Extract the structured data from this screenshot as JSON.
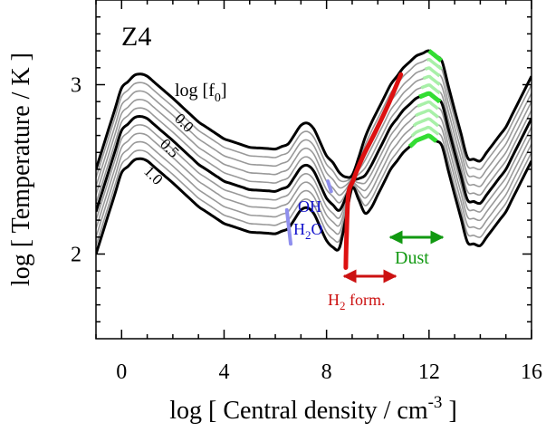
{
  "chart_data": {
    "type": "line",
    "panel_label": "Z4",
    "xlabel_text": "log [ Central density / cm",
    "xlabel_sup": "-3",
    "xlabel_end": " ]",
    "ylabel": "log [ Temperature / K ]",
    "xlim": [
      -1,
      16
    ],
    "ylim": [
      1.5,
      3.5
    ],
    "xticks": [
      0,
      4,
      8,
      12,
      16
    ],
    "yticks": [
      2,
      3
    ],
    "grid": false,
    "legend": "none",
    "param_label": {
      "text": "log [f",
      "sub": "0",
      "end": "]"
    },
    "curve_labels": [
      "0.0",
      "0.5",
      "1.0"
    ],
    "annotations": {
      "oh": "OH",
      "h2o_main": "H",
      "h2o_sub": "2",
      "h2o_end": "O",
      "dust": "Dust",
      "h2_main": "H",
      "h2_sub": "2",
      "h2_end": " form."
    },
    "base_curve": {
      "x": [
        -1.0,
        0.0,
        0.6,
        1.0,
        2.0,
        3.0,
        4.0,
        5.0,
        6.0,
        6.5,
        7.0,
        7.2,
        7.5,
        8.0,
        8.5,
        9.0,
        9.5,
        10.0,
        10.5,
        11.0,
        11.5,
        12.0,
        12.5,
        13.0,
        13.5,
        14.0,
        15.0,
        16.0
      ],
      "y": [
        2.5,
        2.98,
        3.07,
        3.05,
        2.92,
        2.78,
        2.68,
        2.63,
        2.62,
        2.65,
        2.76,
        2.78,
        2.74,
        2.58,
        2.5,
        2.55,
        2.7,
        2.85,
        3.0,
        3.1,
        3.17,
        3.2,
        3.14,
        2.85,
        2.57,
        2.55,
        2.75,
        3.05
      ]
    },
    "series": [
      {
        "f0_log": 0.0,
        "offset": 0.0,
        "bold": true
      },
      {
        "f0_log": 0.1,
        "offset": -0.05,
        "bold": false
      },
      {
        "f0_log": 0.2,
        "offset": -0.1,
        "bold": false
      },
      {
        "f0_log": 0.3,
        "offset": -0.15,
        "bold": false
      },
      {
        "f0_log": 0.4,
        "offset": -0.2,
        "bold": false
      },
      {
        "f0_log": 0.5,
        "offset": -0.25,
        "bold": true
      },
      {
        "f0_log": 0.6,
        "offset": -0.3,
        "bold": false
      },
      {
        "f0_log": 0.7,
        "offset": -0.35,
        "bold": false
      },
      {
        "f0_log": 0.8,
        "offset": -0.4,
        "bold": false
      },
      {
        "f0_log": 0.9,
        "offset": -0.45,
        "bold": false
      },
      {
        "f0_log": 1.0,
        "offset": -0.5,
        "bold": true
      }
    ],
    "h2_formation_track": {
      "x": [
        8.75,
        8.78,
        8.85,
        9.05,
        9.4,
        9.9,
        10.4,
        10.9
      ],
      "y": [
        1.92,
        2.1,
        2.35,
        2.44,
        2.57,
        2.72,
        2.88,
        3.06
      ]
    },
    "dust_band": {
      "x_start_top": 12.0,
      "x_start_bottom": 11.25,
      "x_end_top": 12.5,
      "x_end_bottom": 12.35
    },
    "oh_h2o_marks": [
      {
        "x": [
          6.45,
          6.6
        ],
        "y": [
          2.26,
          2.06
        ]
      },
      {
        "x": [
          8.05,
          8.18
        ],
        "y": [
          2.43,
          2.37
        ]
      }
    ],
    "colors": {
      "h2": "#dd1111",
      "dust": "#33dd33",
      "dust_light": "#a8f0a8",
      "oh": "#8f8fee",
      "oh_text": "#1111cc",
      "dust_text": "#119911",
      "h2_text": "#cc1111",
      "thin": "#999999",
      "bold": "#000000"
    }
  }
}
